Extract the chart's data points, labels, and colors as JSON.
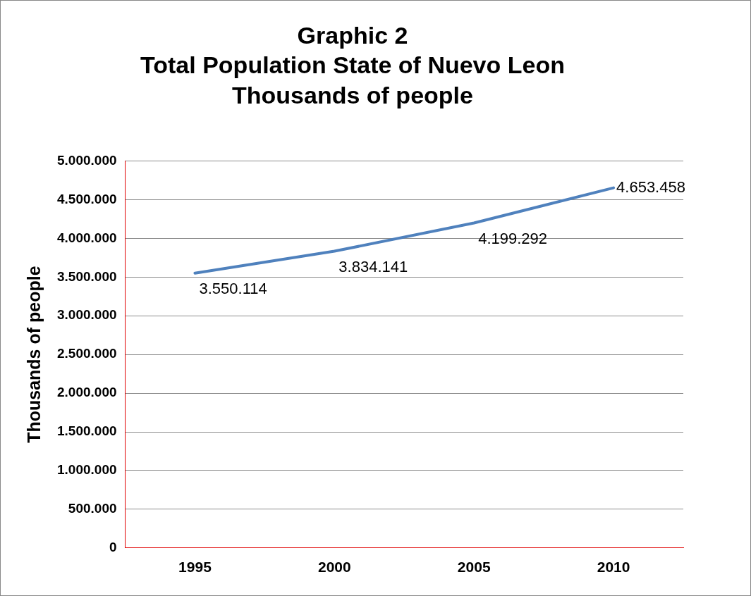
{
  "chart_data": {
    "type": "line",
    "title": "Graphic 2\nTotal Population State of Nuevo Leon\nThousands of people",
    "ylabel": "Thousands of people",
    "categories": [
      "1995",
      "2000",
      "2005",
      "2010"
    ],
    "series": [
      {
        "color": "#4f81bd",
        "values": [
          3550114,
          3834141,
          4199292,
          4653458
        ]
      }
    ],
    "value_labels": [
      "3.550.114",
      "3.834.141",
      "4.199.292",
      "4.653.458"
    ],
    "ylim": [
      0,
      5000000
    ],
    "yticks": [
      {
        "value": 0,
        "label": "0"
      },
      {
        "value": 500000,
        "label": "500.000"
      },
      {
        "value": 1000000,
        "label": "1.000.000"
      },
      {
        "value": 1500000,
        "label": "1.500.000"
      },
      {
        "value": 2000000,
        "label": "2.000.000"
      },
      {
        "value": 2500000,
        "label": "2.500.000"
      },
      {
        "value": 3000000,
        "label": "3.000.000"
      },
      {
        "value": 3500000,
        "label": "3.500.000"
      },
      {
        "value": 4000000,
        "label": "4.000.000"
      },
      {
        "value": 4500000,
        "label": "4.500.000"
      },
      {
        "value": 5000000,
        "label": "5.000.000"
      }
    ],
    "grid": "y",
    "legend": false,
    "marker": "none",
    "line_style": "solid"
  }
}
